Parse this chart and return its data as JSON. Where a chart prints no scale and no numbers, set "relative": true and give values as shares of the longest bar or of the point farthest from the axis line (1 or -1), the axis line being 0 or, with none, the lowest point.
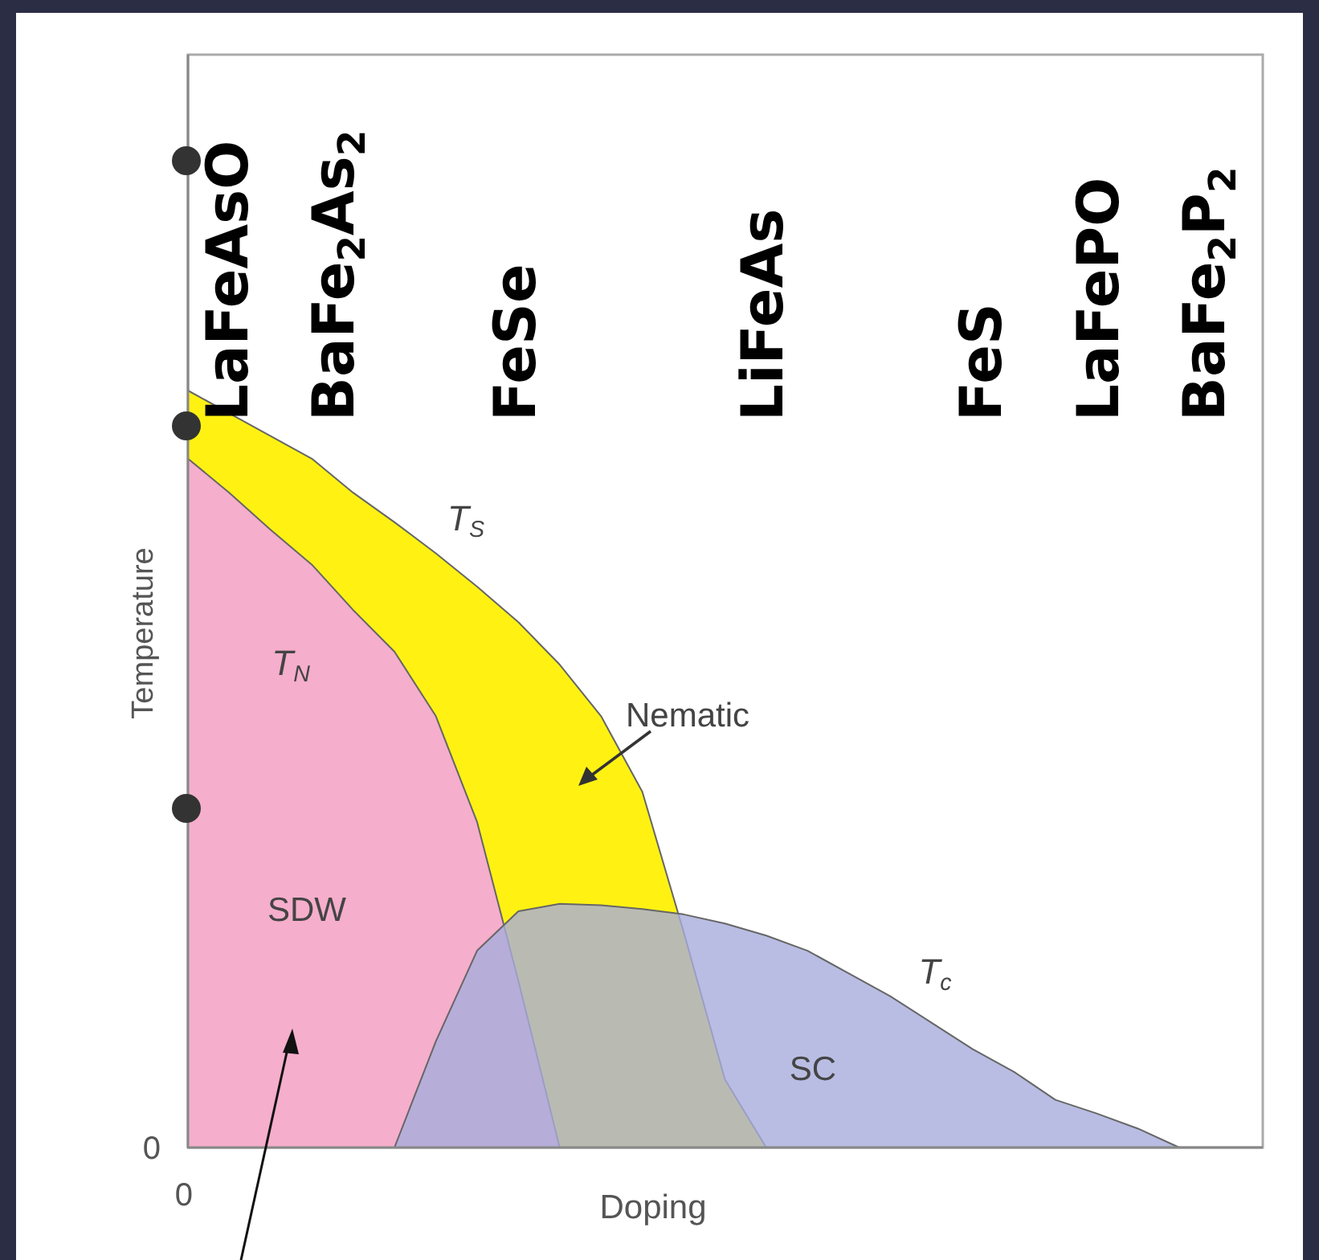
{
  "chart_data": {
    "type": "area",
    "relative": true,
    "xlabel": "Doping",
    "ylabel": "Temperature",
    "categories": [
      null,
      null,
      null,
      null,
      null,
      null,
      null,
      null,
      null,
      null,
      null,
      null,
      null,
      null,
      null,
      null,
      null,
      null,
      null,
      null,
      null,
      null,
      null,
      null,
      null
    ],
    "series": [
      {
        "color": "#fff212",
        "values": [
          1,
          0.97,
          0.94,
          0.91,
          0.865,
          0.826,
          0.785,
          0.741,
          0.694,
          0.638,
          0.57,
          0.47,
          0.285,
          0.09,
          0,
          null,
          null,
          null,
          null,
          null,
          null,
          null,
          null,
          null,
          null
        ]
      },
      {
        "color": "#f5aecb",
        "values": [
          0.91,
          0.865,
          0.816,
          0.77,
          0.71,
          0.655,
          0.57,
          0.43,
          0.22,
          0,
          null,
          null,
          null,
          null,
          null,
          null,
          null,
          null,
          null,
          null,
          null,
          null,
          null,
          null,
          null
        ]
      },
      {
        "color": "#a7addc",
        "values": [
          null,
          null,
          null,
          null,
          null,
          0,
          0.14,
          0.26,
          0.312,
          0.322,
          0.32,
          0.315,
          0.308,
          0.296,
          0.28,
          0.26,
          0.23,
          0.2,
          0.165,
          0.13,
          0.1,
          0.063,
          0.045,
          0.025,
          0
        ]
      }
    ],
    "annotations": [
      "0",
      "0",
      "T$_{S}$",
      "T$_{N}$",
      "T$_{c}$",
      "SDW",
      "Nematic",
      "SC",
      "LaFeAsO",
      "BaFe$_{2}$As$_{2}$",
      "FeSe",
      "LiFeAs",
      "FeS",
      "LaFePO",
      "BaFe$_{2}$P$_{2}$"
    ]
  }
}
